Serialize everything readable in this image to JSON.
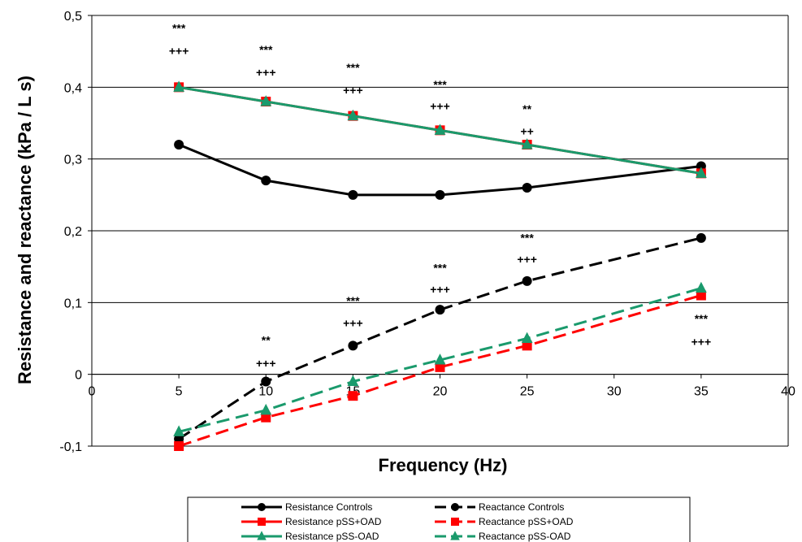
{
  "chart_data": {
    "type": "line",
    "title": "",
    "xlabel": "Frequency (Hz)",
    "ylabel": "Resistance and reactance (kPa / L s)",
    "xlim": [
      0,
      40
    ],
    "ylim": [
      -0.1,
      0.5
    ],
    "x_ticks": [
      0,
      5,
      10,
      15,
      20,
      25,
      30,
      35,
      40
    ],
    "x_tick_labels": [
      "0",
      "5",
      "10",
      "15",
      "20",
      "25",
      "30",
      "35",
      "40"
    ],
    "y_ticks": [
      -0.1,
      0,
      0.1,
      0.2,
      0.3,
      0.4,
      0.5
    ],
    "y_tick_labels": [
      "-0,1",
      "0",
      "0,1",
      "0,2",
      "0,3",
      "0,4",
      "0,5"
    ],
    "grid": "horizontal",
    "legend_position": "bottom",
    "x": [
      5,
      10,
      15,
      20,
      25,
      35
    ],
    "series": [
      {
        "name": "Resistance Controls",
        "values": [
          0.32,
          0.27,
          0.25,
          0.25,
          0.26,
          0.29
        ],
        "color": "#000000",
        "dash": "solid",
        "marker": "circle"
      },
      {
        "name": "Reactance Controls",
        "values": [
          -0.09,
          -0.01,
          0.04,
          0.09,
          0.13,
          0.19
        ],
        "color": "#000000",
        "dash": "dashed",
        "marker": "circle"
      },
      {
        "name": "Resistance pSS+OAD",
        "values": [
          0.4,
          0.38,
          0.36,
          0.34,
          0.32,
          0.28
        ],
        "color": "#ff0000",
        "dash": "solid",
        "marker": "square"
      },
      {
        "name": "Reactance pSS+OAD",
        "values": [
          -0.1,
          -0.06,
          -0.03,
          0.01,
          0.04,
          0.11
        ],
        "color": "#ff0000",
        "dash": "dashed",
        "marker": "square"
      },
      {
        "name": "Resistance pSS-OAD",
        "values": [
          0.4,
          0.38,
          0.36,
          0.34,
          0.32,
          0.28
        ],
        "color": "#1a9a6c",
        "dash": "solid",
        "marker": "triangle"
      },
      {
        "name": "Reactance pSS-OAD",
        "values": [
          -0.08,
          -0.05,
          -0.01,
          0.02,
          0.05,
          0.12
        ],
        "color": "#1a9a6c",
        "dash": "dashed",
        "marker": "triangle"
      }
    ],
    "annotations": [
      {
        "x": 5,
        "y": 0.477,
        "text": "***"
      },
      {
        "x": 5,
        "y": 0.445,
        "text": "+++"
      },
      {
        "x": 10,
        "y": 0.447,
        "text": "***"
      },
      {
        "x": 10,
        "y": 0.415,
        "text": "+++"
      },
      {
        "x": 15,
        "y": 0.422,
        "text": "***"
      },
      {
        "x": 15,
        "y": 0.39,
        "text": "+++"
      },
      {
        "x": 20,
        "y": 0.398,
        "text": "***"
      },
      {
        "x": 20,
        "y": 0.368,
        "text": "+++"
      },
      {
        "x": 25,
        "y": 0.364,
        "text": "**"
      },
      {
        "x": 25,
        "y": 0.333,
        "text": "++"
      },
      {
        "x": 25,
        "y": 0.185,
        "text": "***"
      },
      {
        "x": 25,
        "y": 0.155,
        "text": "+++"
      },
      {
        "x": 20,
        "y": 0.143,
        "text": "***"
      },
      {
        "x": 20,
        "y": 0.113,
        "text": "+++"
      },
      {
        "x": 15,
        "y": 0.097,
        "text": "***"
      },
      {
        "x": 15,
        "y": 0.066,
        "text": "+++"
      },
      {
        "x": 10,
        "y": 0.042,
        "text": "**"
      },
      {
        "x": 10,
        "y": 0.01,
        "text": "+++"
      },
      {
        "x": 35,
        "y": 0.072,
        "text": "***"
      },
      {
        "x": 35,
        "y": 0.04,
        "text": "+++"
      }
    ]
  }
}
